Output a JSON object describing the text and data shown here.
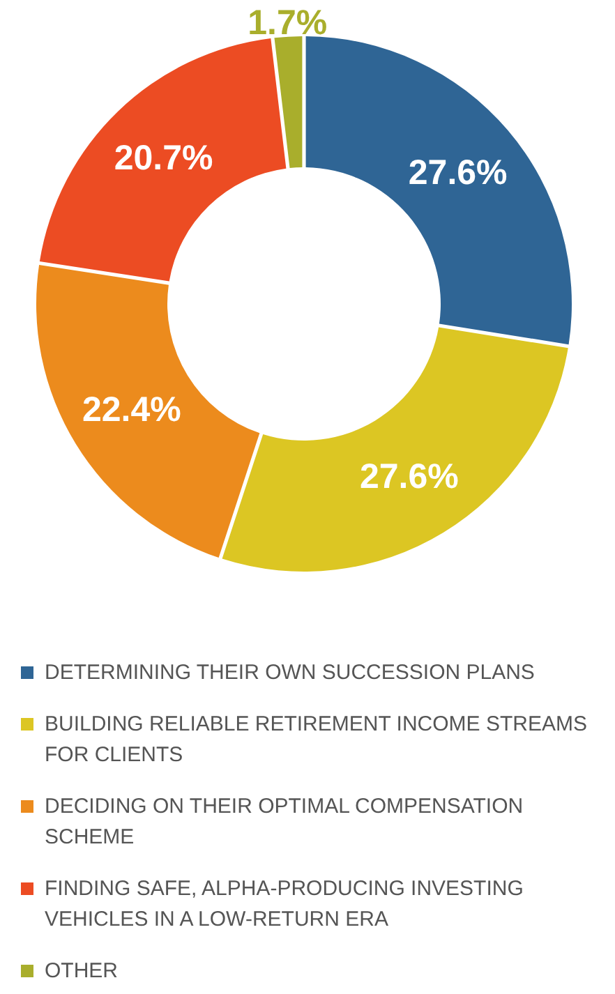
{
  "chart_data": {
    "type": "donut",
    "categories": [
      "DETERMINING THEIR OWN SUCCESSION PLANS",
      "BUILDING RELIABLE RETIREMENT INCOME STREAMS FOR CLIENTS",
      "DECIDING ON THEIR OPTIMAL COMPENSATION SCHEME",
      "FINDING SAFE, ALPHA-PRODUCING INVESTING VEHICLES IN A LOW-RETURN ERA",
      "OTHER"
    ],
    "values": [
      27.6,
      27.6,
      22.4,
      20.7,
      1.7
    ],
    "colors": [
      "#2f6595",
      "#dcc623",
      "#ec8b1d",
      "#ec4c23",
      "#a9ae2c"
    ],
    "value_labels": [
      "27.6%",
      "27.6%",
      "22.4%",
      "20.7%",
      "1.7%"
    ],
    "legend": "bottom"
  }
}
